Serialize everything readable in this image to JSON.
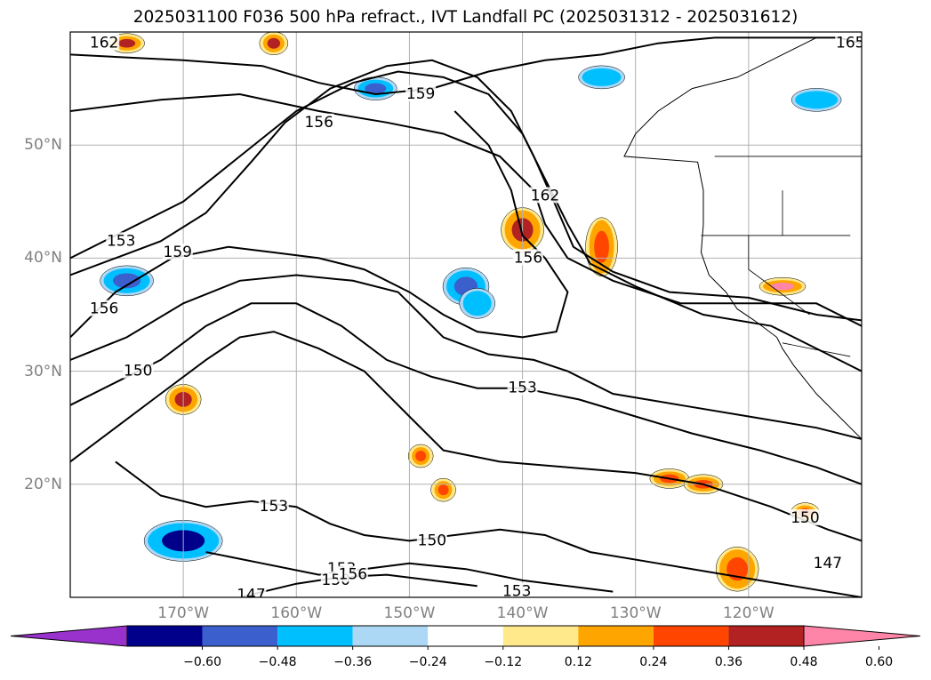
{
  "title": "2025031100 F036 500 hPa refract., IVT Landfall PC (2025031312 - 2025031612)",
  "chart_data": {
    "type": "heatmap",
    "description_role": "filled contours of IVT landfall principal component with line contours of 500 hPa refractivity",
    "lon_range": [
      -180,
      -110
    ],
    "lat_range": [
      10,
      60
    ],
    "lon_ticks": [
      -170,
      -160,
      -150,
      -140,
      -130,
      -120
    ],
    "lon_tick_labels": [
      "170°W",
      "160°W",
      "150°W",
      "140°W",
      "130°W",
      "120°W"
    ],
    "lat_ticks": [
      20,
      30,
      40,
      50
    ],
    "lat_tick_labels": [
      "20°N",
      "30°N",
      "40°N",
      "50°N"
    ],
    "grid": true,
    "colorbar": {
      "orientation": "horizontal",
      "extend": "both",
      "levels": [
        -0.6,
        -0.48,
        -0.36,
        -0.24,
        -0.12,
        0.12,
        0.24,
        0.36,
        0.48,
        0.6
      ],
      "tick_labels": [
        "−0.60",
        "−0.48",
        "−0.36",
        "−0.24",
        "−0.12",
        "0.12",
        "0.24",
        "0.36",
        "0.48",
        "0.60"
      ],
      "colors": [
        "#9932cc",
        "#00008b",
        "#3b5fcd",
        "#00bfff",
        "#add8f5",
        "#ffffff",
        "#ffe98a",
        "#ffa500",
        "#ff4500",
        "#b22222",
        "#ff85a8"
      ]
    },
    "contour_labels": [
      {
        "text": "162",
        "lon": -177,
        "lat": 59
      },
      {
        "text": "165",
        "lon": -111,
        "lat": 59
      },
      {
        "text": "159",
        "lon": -149,
        "lat": 54.5
      },
      {
        "text": "156",
        "lon": -158,
        "lat": 52
      },
      {
        "text": "162",
        "lon": -138,
        "lat": 45.5
      },
      {
        "text": "156",
        "lon": -139.5,
        "lat": 40
      },
      {
        "text": "153",
        "lon": -175.5,
        "lat": 41.5
      },
      {
        "text": "159",
        "lon": -170.5,
        "lat": 40.5
      },
      {
        "text": "156",
        "lon": -177,
        "lat": 35.5
      },
      {
        "text": "150",
        "lon": -174,
        "lat": 30
      },
      {
        "text": "153",
        "lon": -140,
        "lat": 28.5
      },
      {
        "text": "153",
        "lon": -162,
        "lat": 18
      },
      {
        "text": "150",
        "lon": -148,
        "lat": 15
      },
      {
        "text": "153",
        "lon": -156,
        "lat": 12.5
      },
      {
        "text": "150",
        "lon": -156.5,
        "lat": 11.5
      },
      {
        "text": "156",
        "lon": -155,
        "lat": 12
      },
      {
        "text": "147",
        "lon": -164,
        "lat": 10.2
      },
      {
        "text": "153",
        "lon": -140.5,
        "lat": 10.5
      },
      {
        "text": "150",
        "lon": -115,
        "lat": 17
      },
      {
        "text": "147",
        "lon": -113,
        "lat": 13
      }
    ],
    "filled_regions": [
      {
        "lon": -175,
        "lat": 38,
        "value": -0.48
      },
      {
        "lon": -145,
        "lat": 37.5,
        "value": -0.48
      },
      {
        "lon": -144,
        "lat": 36,
        "value": -0.36
      },
      {
        "lon": -170,
        "lat": 15,
        "value": -0.6
      },
      {
        "lon": -153,
        "lat": 55,
        "value": -0.48
      },
      {
        "lon": -133,
        "lat": 56,
        "value": -0.36
      },
      {
        "lon": -114,
        "lat": 54,
        "value": -0.36
      },
      {
        "lon": -140,
        "lat": 42.5,
        "value": 0.48
      },
      {
        "lon": -133,
        "lat": 41,
        "value": 0.36
      },
      {
        "lon": -117,
        "lat": 37.5,
        "value": 0.6
      },
      {
        "lon": -127,
        "lat": 20.5,
        "value": 0.36
      },
      {
        "lon": -115,
        "lat": 17.5,
        "value": 0.36
      },
      {
        "lon": -147,
        "lat": 19.5,
        "value": 0.36
      },
      {
        "lon": -149,
        "lat": 22.5,
        "value": 0.36
      },
      {
        "lon": -124,
        "lat": 20,
        "value": 0.36
      },
      {
        "lon": -121,
        "lat": 12.5,
        "value": 0.36
      },
      {
        "lon": -170,
        "lat": 27.5,
        "value": 0.48
      },
      {
        "lon": -175,
        "lat": 59,
        "value": 0.48
      },
      {
        "lon": -162,
        "lat": 59,
        "value": 0.48
      }
    ]
  }
}
